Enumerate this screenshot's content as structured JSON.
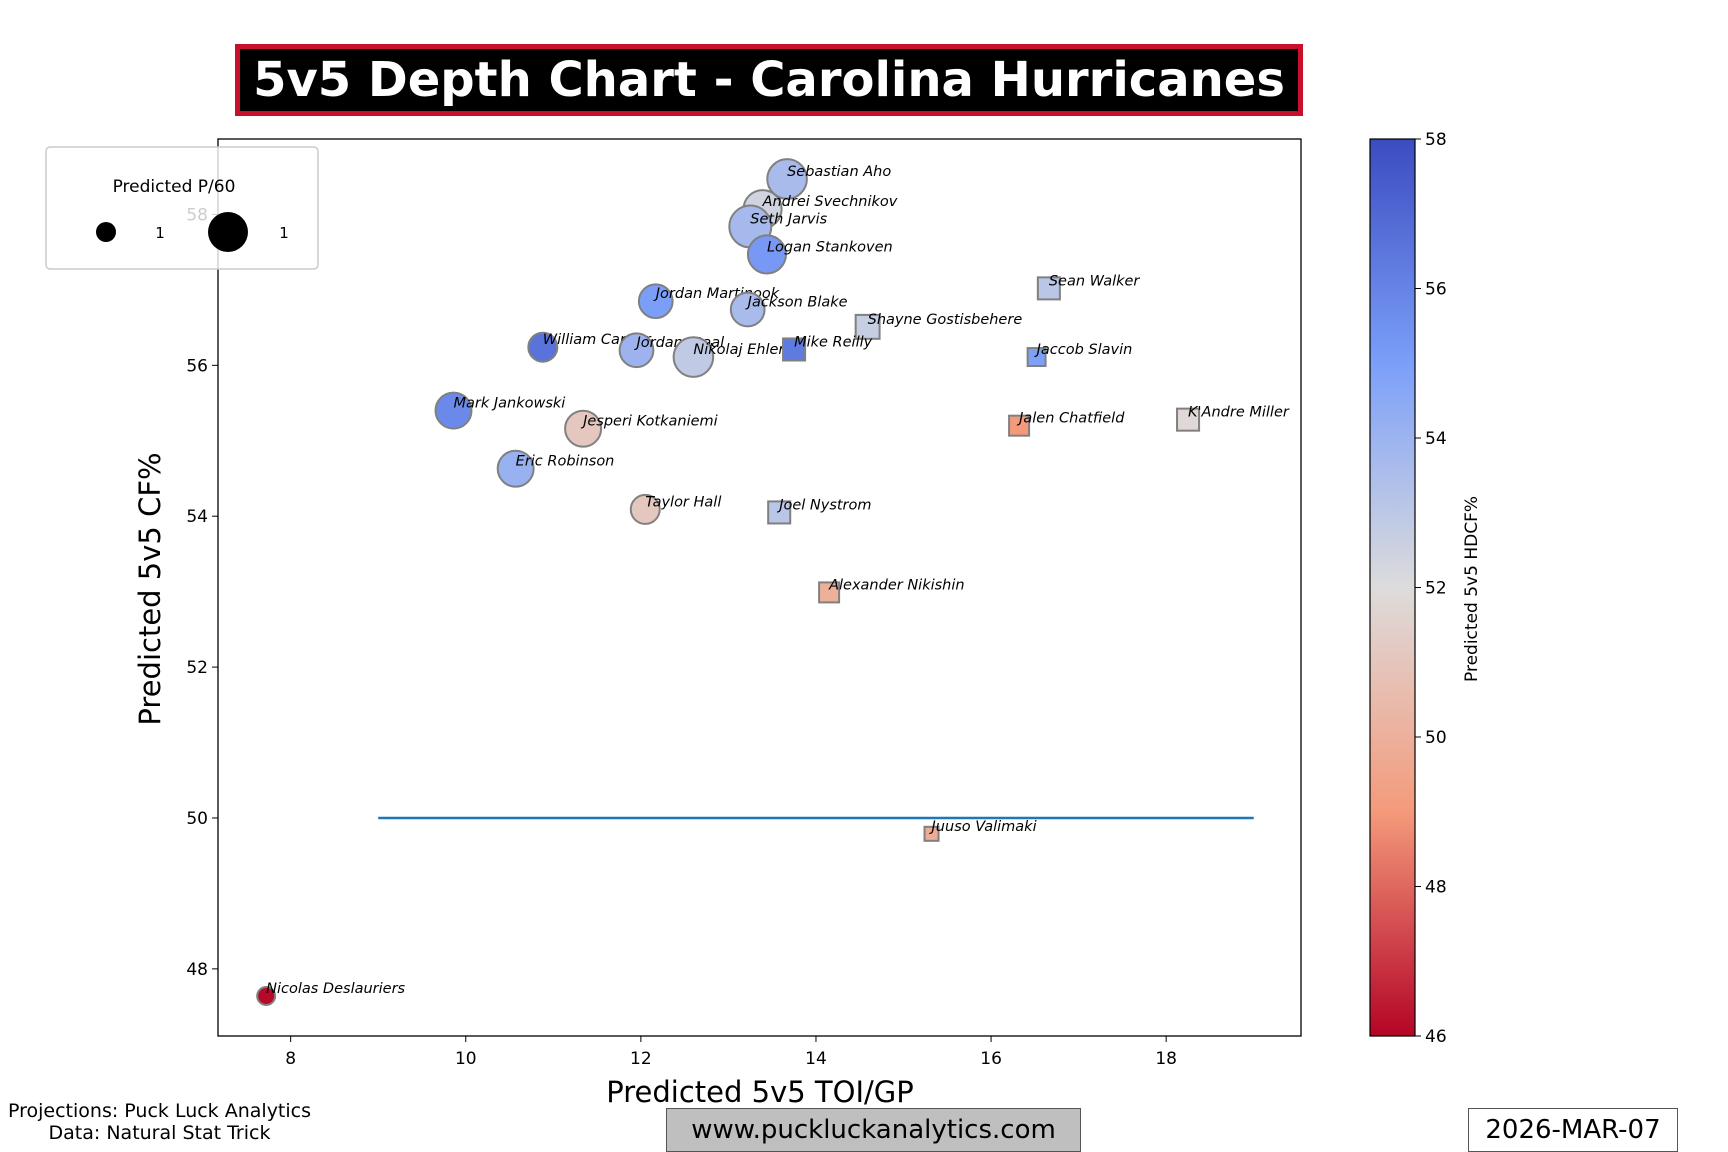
{
  "title": "5v5 Depth Chart - Carolina Hurricanes",
  "footer": {
    "projections": "Projections: Puck Luck Analytics",
    "data_source": "Data: Natural Stat Trick",
    "website": "www.puckluckanalytics.com",
    "date": "2026-MAR-07"
  },
  "colors": {
    "title_border": "#c8102e",
    "reference_line": "#1f77b4",
    "colormap": "coolwarm_r"
  },
  "chart_data": {
    "type": "scatter",
    "xlabel": "Predicted 5v5 TOI/GP",
    "ylabel": "Predicted 5v5 CF%",
    "xlim": [
      7.17,
      19.54
    ],
    "ylim": [
      47.11,
      59.0
    ],
    "xticks": [
      8,
      10,
      12,
      14,
      16,
      18
    ],
    "yticks": [
      48,
      50,
      52,
      54,
      56,
      58
    ],
    "grid": false,
    "reference_line": {
      "y": 50,
      "x_start": 9,
      "x_end": 19
    },
    "size_legend": {
      "title": "Predicted P/60",
      "labels": [
        "1",
        "1"
      ],
      "placement": "top-left"
    },
    "colorbar": {
      "label": "Predicted 5v5 HDCF%",
      "range": [
        46,
        58
      ],
      "ticks": [
        46,
        48,
        50,
        52,
        54,
        56,
        58
      ]
    },
    "marker_shapes": {
      "forward": "circle",
      "defense": "square"
    },
    "points": [
      {
        "name": "Sebastian Aho",
        "x": 13.67,
        "y": 58.47,
        "hdcf": 53.6,
        "p60": 2.0,
        "shape": "circle"
      },
      {
        "name": "Andrei Svechnikov",
        "x": 13.39,
        "y": 58.07,
        "hdcf": 52.4,
        "p60": 1.85,
        "shape": "circle"
      },
      {
        "name": "Seth Jarvis",
        "x": 13.25,
        "y": 57.84,
        "hdcf": 53.7,
        "p60": 2.25,
        "shape": "circle"
      },
      {
        "name": "Logan Stankoven",
        "x": 13.44,
        "y": 57.47,
        "hdcf": 55.2,
        "p60": 1.85,
        "shape": "circle"
      },
      {
        "name": "Jordan Martinook",
        "x": 12.17,
        "y": 56.85,
        "hdcf": 55.0,
        "p60": 1.45,
        "shape": "circle"
      },
      {
        "name": "Jackson Blake",
        "x": 13.22,
        "y": 56.74,
        "hdcf": 53.6,
        "p60": 1.45,
        "shape": "circle"
      },
      {
        "name": "Sean Walker",
        "x": 16.66,
        "y": 57.02,
        "hdcf": 53.1,
        "p60": 0.62,
        "shape": "square"
      },
      {
        "name": "Shayne Gostisbehere",
        "x": 14.59,
        "y": 56.51,
        "hdcf": 52.7,
        "p60": 0.73,
        "shape": "square"
      },
      {
        "name": "William Carrier",
        "x": 10.88,
        "y": 56.24,
        "hdcf": 56.6,
        "p60": 1.07,
        "shape": "circle"
      },
      {
        "name": "Jordan Staal",
        "x": 11.95,
        "y": 56.2,
        "hdcf": 54.0,
        "p60": 1.45,
        "shape": "circle"
      },
      {
        "name": "Nikolaj Ehlers",
        "x": 12.6,
        "y": 56.11,
        "hdcf": 52.9,
        "p60": 2.0,
        "shape": "circle"
      },
      {
        "name": "Mike Reilly",
        "x": 13.75,
        "y": 56.21,
        "hdcf": 56.3,
        "p60": 0.62,
        "shape": "square"
      },
      {
        "name": "Jaccob Slavin",
        "x": 16.52,
        "y": 56.11,
        "hdcf": 54.9,
        "p60": 0.41,
        "shape": "square"
      },
      {
        "name": "Mark Jankowski",
        "x": 9.86,
        "y": 55.4,
        "hdcf": 55.8,
        "p60": 1.65,
        "shape": "circle"
      },
      {
        "name": "Jesperi Kotkaniemi",
        "x": 11.34,
        "y": 55.16,
        "hdcf": 51.1,
        "p60": 1.65,
        "shape": "circle"
      },
      {
        "name": "Jalen Chatfield",
        "x": 16.32,
        "y": 55.2,
        "hdcf": 49.0,
        "p60": 0.51,
        "shape": "square"
      },
      {
        "name": "K'Andre Miller",
        "x": 18.25,
        "y": 55.28,
        "hdcf": 51.8,
        "p60": 0.62,
        "shape": "square"
      },
      {
        "name": "Eric Robinson",
        "x": 10.57,
        "y": 54.63,
        "hdcf": 54.1,
        "p60": 1.65,
        "shape": "circle"
      },
      {
        "name": "Taylor Hall",
        "x": 12.05,
        "y": 54.09,
        "hdcf": 51.1,
        "p60": 1.07,
        "shape": "circle"
      },
      {
        "name": "Joel Nystrom",
        "x": 13.58,
        "y": 54.05,
        "hdcf": 53.1,
        "p60": 0.62,
        "shape": "square"
      },
      {
        "name": "Alexander Nikishin",
        "x": 14.15,
        "y": 52.99,
        "hdcf": 50.0,
        "p60": 0.51,
        "shape": "square"
      },
      {
        "name": "Juuso Valimaki",
        "x": 15.32,
        "y": 49.79,
        "hdcf": 49.8,
        "p60": 0.25,
        "shape": "square"
      },
      {
        "name": "Nicolas Deslauriers",
        "x": 7.72,
        "y": 47.64,
        "hdcf": 46.1,
        "p60": 0.41,
        "shape": "circle"
      }
    ]
  }
}
